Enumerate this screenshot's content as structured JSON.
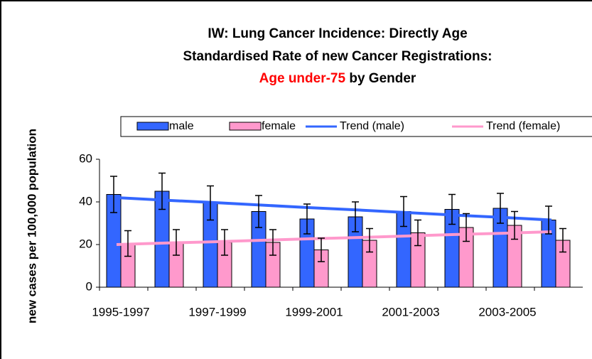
{
  "chart_data": {
    "type": "bar",
    "title": {
      "lines": [
        "IW: Lung Cancer Incidence: Directly Age",
        "Standardised Rate of new Cancer Registrations:"
      ],
      "highlight": "Age under-75",
      "tail": "by Gender"
    },
    "y_label": "new cases per 100,000 population",
    "categories": [
      "1995-1997",
      null,
      "1997-1999",
      null,
      "1999-2001",
      null,
      "2001-2003",
      null,
      "2003-2005",
      null
    ],
    "series": [
      {
        "name": "male",
        "color": "#3366ff",
        "values": [
          43.5,
          45,
          39.5,
          35.5,
          32,
          33,
          35.5,
          36.5,
          37,
          31.5
        ],
        "errors": [
          8.5,
          8.5,
          8,
          7.5,
          7,
          7,
          7,
          7,
          7,
          6.5
        ]
      },
      {
        "name": "female",
        "color": "#ff99cc",
        "values": [
          20.5,
          21,
          21,
          21,
          17.5,
          22,
          25.5,
          28,
          29,
          22
        ],
        "errors": [
          6,
          6,
          6,
          6,
          5.5,
          5.5,
          6,
          6.5,
          6.5,
          5.5
        ]
      }
    ],
    "trends": [
      {
        "name": "Trend (male)",
        "color": "#3366ff",
        "values": [
          42,
          40.8,
          39.7,
          38.5,
          37.3,
          36.2,
          35,
          33.8,
          32.7,
          31.5
        ]
      },
      {
        "name": "Trend (female)",
        "color": "#ff99cc",
        "values": [
          20,
          20.7,
          21.3,
          22,
          22.7,
          23.3,
          24,
          24.7,
          25.3,
          26
        ]
      }
    ],
    "ylim": [
      0,
      60
    ],
    "yticks": [
      0,
      20,
      40,
      60
    ],
    "grid": false
  }
}
